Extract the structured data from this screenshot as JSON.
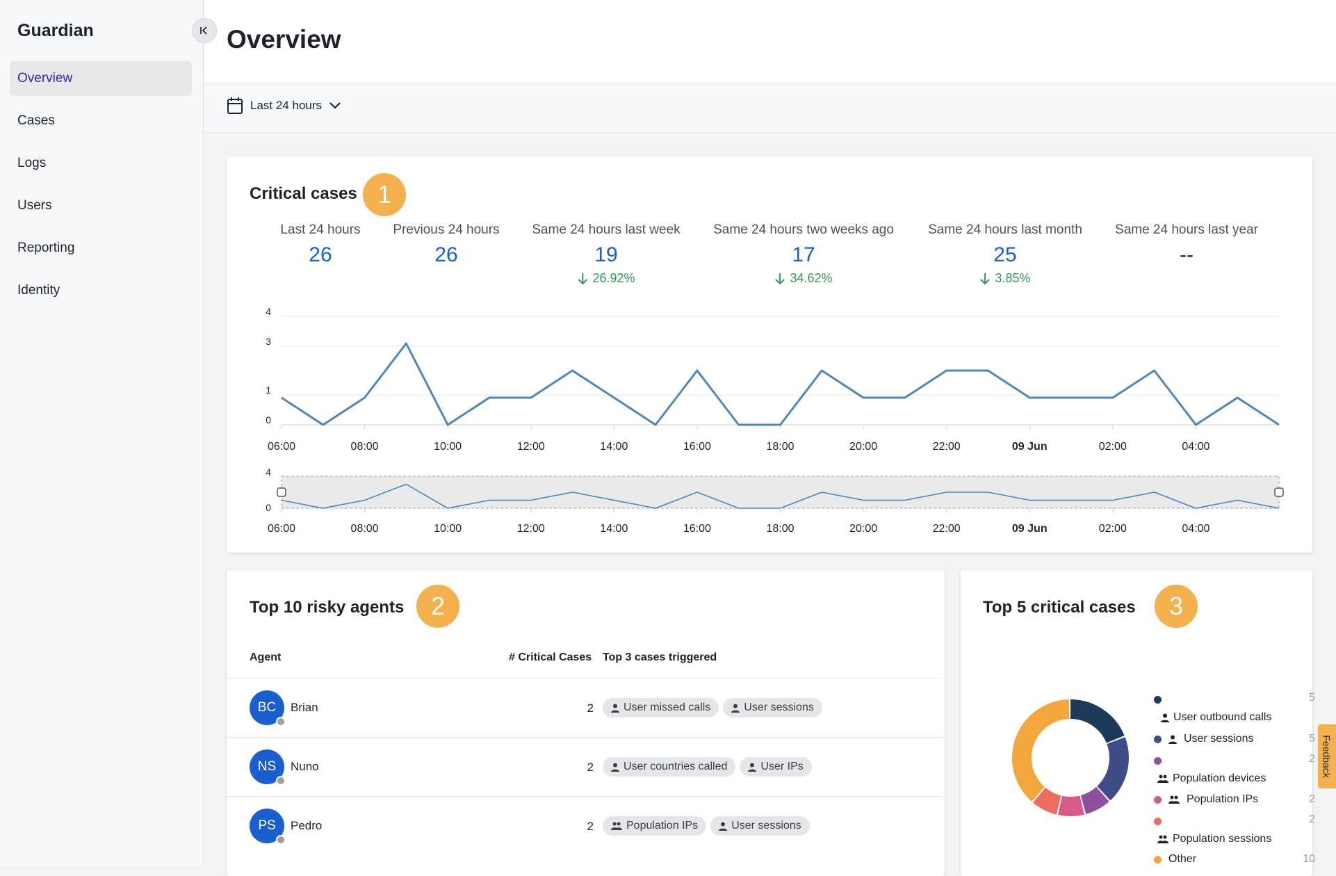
{
  "app": {
    "title": "Guardian"
  },
  "sidebar": {
    "items": [
      {
        "label": "Overview",
        "active": true
      },
      {
        "label": "Cases"
      },
      {
        "label": "Logs"
      },
      {
        "label": "Users"
      },
      {
        "label": "Reporting"
      },
      {
        "label": "Identity"
      }
    ]
  },
  "header": {
    "title": "Overview"
  },
  "filter": {
    "time_range": "Last 24 hours"
  },
  "critical_cases": {
    "title": "Critical cases",
    "badge": "1",
    "stats": [
      {
        "label": "Last 24 hours",
        "value": "26",
        "delta": ""
      },
      {
        "label": "Previous 24 hours",
        "value": "26",
        "delta": ""
      },
      {
        "label": "Same 24 hours last week",
        "value": "19",
        "delta": "26.92%"
      },
      {
        "label": "Same 24 hours two weeks ago",
        "value": "17",
        "delta": "34.62%"
      },
      {
        "label": "Same 24 hours last month",
        "value": "25",
        "delta": "3.85%"
      },
      {
        "label": "Same 24 hours last year",
        "value": "--",
        "delta": ""
      }
    ]
  },
  "chart_data": {
    "type": "line",
    "x_ticks": [
      "06:00",
      "08:00",
      "10:00",
      "12:00",
      "14:00",
      "16:00",
      "18:00",
      "20:00",
      "22:00",
      "09 Jun",
      "02:00",
      "04:00"
    ],
    "x_tick_bold": [
      false,
      false,
      false,
      false,
      false,
      false,
      false,
      false,
      false,
      true,
      false,
      false
    ],
    "y_ticks": [
      "0",
      "1",
      "3",
      "4"
    ],
    "navigator_y_ticks": [
      "0",
      "4"
    ],
    "ylim": [
      0,
      4
    ],
    "series": [
      {
        "values": [
          1,
          0,
          1,
          3,
          0,
          1,
          1,
          2,
          1,
          0,
          2,
          0,
          0,
          2,
          1,
          1,
          2,
          2,
          1,
          1,
          1,
          2,
          0,
          1,
          0
        ]
      }
    ],
    "line_color": "#4e86b8"
  },
  "top_agents": {
    "title": "Top 10 risky agents",
    "badge": "2",
    "columns": {
      "agent": "Agent",
      "count": "# Critical Cases",
      "cases": "Top 3 cases triggered"
    },
    "rows": [
      {
        "initials": "BC",
        "name": "Brian",
        "count": "2",
        "cases": [
          {
            "label": "User missed calls",
            "icon": "user-icon"
          },
          {
            "label": "User sessions",
            "icon": "user-icon"
          }
        ]
      },
      {
        "initials": "NS",
        "name": "Nuno",
        "count": "2",
        "cases": [
          {
            "label": "User countries called",
            "icon": "user-icon"
          },
          {
            "label": "User IPs",
            "icon": "user-icon"
          }
        ]
      },
      {
        "initials": "PS",
        "name": "Pedro",
        "count": "2",
        "cases": [
          {
            "label": "Population IPs",
            "icon": "group-icon"
          },
          {
            "label": "User sessions",
            "icon": "user-icon"
          }
        ]
      }
    ]
  },
  "top_cases": {
    "title": "Top 5 critical cases",
    "badge": "3",
    "legend": [
      {
        "label": "User outbound calls",
        "value": "5",
        "color": "#1c3a5a",
        "icon": "user-icon"
      },
      {
        "label": "User sessions",
        "value": "5",
        "color": "#404c85",
        "icon": "user-icon"
      },
      {
        "label": "Population devices",
        "value": "2",
        "color": "#8e4f9c",
        "icon": "group-icon"
      },
      {
        "label": "Population IPs",
        "value": "2",
        "color": "#d75b8a",
        "icon": "group-icon"
      },
      {
        "label": "Population sessions",
        "value": "2",
        "color": "#ef6c5c",
        "icon": "group-icon"
      },
      {
        "label": "Other",
        "value": "10",
        "color": "#f3a63c",
        "icon": ""
      }
    ]
  },
  "feedback": {
    "label": "Feedback"
  }
}
